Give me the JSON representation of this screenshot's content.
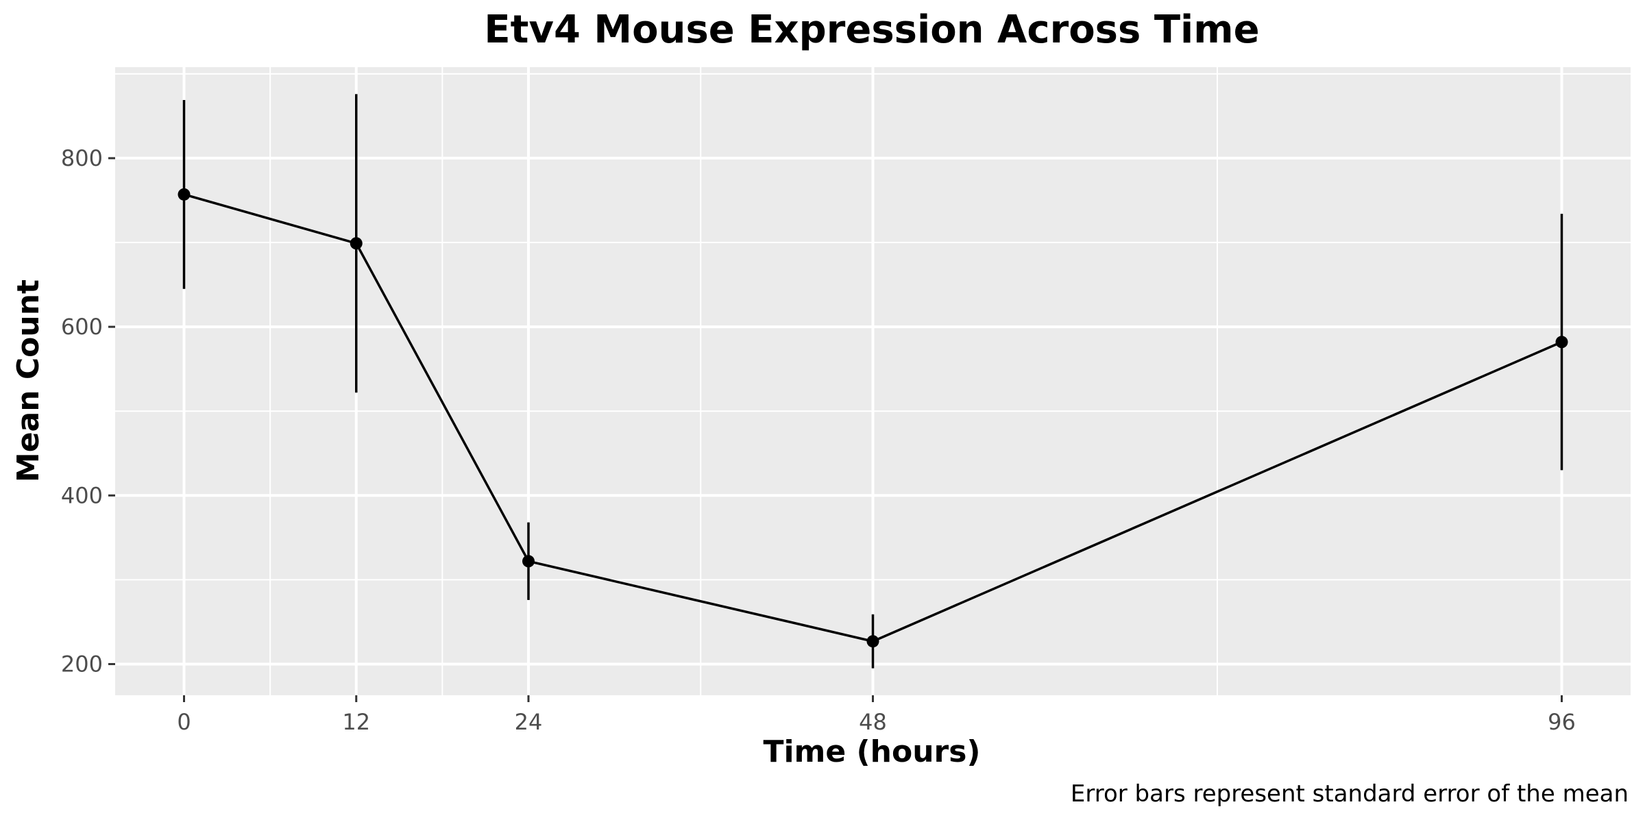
{
  "chart_data": {
    "type": "line",
    "title": "Etv4 Mouse Expression Across Time",
    "xlabel": "Time (hours)",
    "ylabel": "Mean Count",
    "caption": "Error bars represent standard error of the mean",
    "x_ticks": [
      0,
      12,
      24,
      48,
      96
    ],
    "x_tick_labels": [
      "0",
      "12",
      "24",
      "48",
      "96"
    ],
    "y_ticks": [
      200,
      400,
      600,
      800
    ],
    "y_tick_labels": [
      "200",
      "400",
      "600",
      "800"
    ],
    "xlim": [
      -4.8,
      100.8
    ],
    "ylim": [
      163,
      908
    ],
    "grid": true,
    "series": [
      {
        "x": [
          0,
          12,
          24,
          48,
          96
        ],
        "values": [
          757,
          699,
          322,
          227,
          582
        ],
        "error_low": [
          645,
          522,
          276,
          195,
          430
        ],
        "error_high": [
          869,
          876,
          368,
          259,
          734
        ]
      }
    ],
    "colors": {
      "panel": "#ebebeb",
      "grid": "#ffffff",
      "line": "#000000"
    }
  }
}
